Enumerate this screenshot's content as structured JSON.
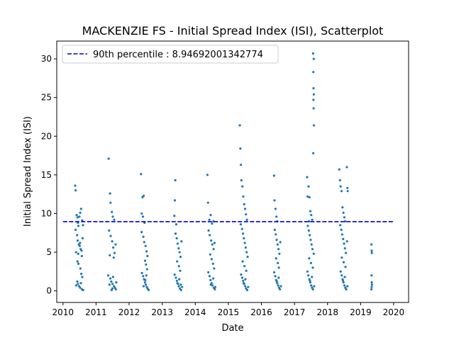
{
  "chart_data": {
    "type": "scatter",
    "title": "MACKENZIE FS - Initial Spread Index (ISI), Scatterplot",
    "xlabel": "Date",
    "ylabel": "Initial Spread Index (ISI)",
    "xlim": [
      "2009-10-24",
      "2020-06-14"
    ],
    "ylim": [
      -1.5,
      32.3
    ],
    "x_ticks": [
      "2010-01-01",
      "2011-01-01",
      "2012-01-01",
      "2013-01-01",
      "2014-01-01",
      "2015-01-01",
      "2016-01-01",
      "2017-01-01",
      "2018-01-01",
      "2019-01-01",
      "2020-01-01"
    ],
    "x_tick_labels": [
      "2010",
      "2011",
      "2012",
      "2013",
      "2014",
      "2015",
      "2016",
      "2017",
      "2018",
      "2019",
      "2020"
    ],
    "y_ticks": [
      0,
      5,
      10,
      15,
      20,
      25,
      30
    ],
    "y_tick_labels": [
      "0",
      "5",
      "10",
      "15",
      "20",
      "25",
      "30"
    ],
    "grid": false,
    "legend": {
      "position": "top-left",
      "entries": [
        "90th percentile : 8.94692001342774"
      ]
    },
    "threshold": {
      "name": "90th percentile : 8.94692001342774",
      "value": 8.94692001342774,
      "x_range": [
        "2010-01-01",
        "2020-01-01"
      ],
      "color": "#0000cc",
      "style": "dashed"
    },
    "series": [
      {
        "color": "#1f77b4",
        "points": [
          [
            "2010-05-15",
            13.6
          ],
          [
            "2010-05-20",
            13.0
          ],
          [
            "2010-06-01",
            9.8
          ],
          [
            "2010-06-10",
            9.5
          ],
          [
            "2010-06-15",
            8.8
          ],
          [
            "2010-06-20",
            8.4
          ],
          [
            "2010-07-01",
            9.6
          ],
          [
            "2010-07-10",
            10.1
          ],
          [
            "2010-07-20",
            10.6
          ],
          [
            "2010-08-01",
            9.1
          ],
          [
            "2010-08-10",
            8.5
          ],
          [
            "2010-05-20",
            7.9
          ],
          [
            "2010-06-05",
            7.2
          ],
          [
            "2010-06-12",
            6.5
          ],
          [
            "2010-06-25",
            6.0
          ],
          [
            "2010-07-05",
            5.8
          ],
          [
            "2010-07-15",
            5.4
          ],
          [
            "2010-07-25",
            5.2
          ],
          [
            "2010-08-05",
            6.8
          ],
          [
            "2010-05-25",
            5.0
          ],
          [
            "2010-06-18",
            4.8
          ],
          [
            "2010-07-08",
            6.2
          ],
          [
            "2010-07-28",
            4.5
          ],
          [
            "2010-06-10",
            3.8
          ],
          [
            "2010-06-20",
            3.5
          ],
          [
            "2010-07-12",
            2.9
          ],
          [
            "2010-07-22",
            2.2
          ],
          [
            "2010-08-02",
            1.8
          ],
          [
            "2010-06-08",
            1.2
          ],
          [
            "2010-06-15",
            0.9
          ],
          [
            "2010-06-28",
            0.6
          ],
          [
            "2010-07-10",
            0.4
          ],
          [
            "2010-07-30",
            0.2
          ],
          [
            "2010-08-12",
            0.1
          ],
          [
            "2010-05-28",
            0.7
          ],
          [
            "2010-07-18",
            1.0
          ],
          [
            "2011-05-20",
            17.1
          ],
          [
            "2011-06-05",
            12.6
          ],
          [
            "2011-06-10",
            11.4
          ],
          [
            "2011-06-25",
            10.2
          ],
          [
            "2011-07-05",
            9.6
          ],
          [
            "2011-07-20",
            9.2
          ],
          [
            "2011-05-25",
            7.8
          ],
          [
            "2011-06-12",
            7.1
          ],
          [
            "2011-06-28",
            6.4
          ],
          [
            "2011-07-10",
            5.6
          ],
          [
            "2011-07-25",
            4.9
          ],
          [
            "2011-08-05",
            6.0
          ],
          [
            "2011-06-02",
            4.6
          ],
          [
            "2011-07-15",
            4.3
          ],
          [
            "2011-05-15",
            2.0
          ],
          [
            "2011-06-08",
            1.6
          ],
          [
            "2011-06-18",
            1.2
          ],
          [
            "2011-07-02",
            0.9
          ],
          [
            "2011-07-18",
            0.6
          ],
          [
            "2011-07-28",
            0.4
          ],
          [
            "2011-08-08",
            0.2
          ],
          [
            "2011-06-22",
            0.1
          ],
          [
            "2011-05-30",
            0.8
          ],
          [
            "2011-07-08",
            1.8
          ],
          [
            "2011-08-12",
            1.1
          ],
          [
            "2011-06-30",
            0.3
          ],
          [
            "2012-05-12",
            15.1
          ],
          [
            "2012-05-28",
            12.1
          ],
          [
            "2012-06-10",
            12.3
          ],
          [
            "2012-05-20",
            10.0
          ],
          [
            "2012-06-02",
            9.6
          ],
          [
            "2012-06-20",
            8.8
          ],
          [
            "2012-05-18",
            7.6
          ],
          [
            "2012-06-06",
            7.0
          ],
          [
            "2012-06-16",
            6.3
          ],
          [
            "2012-07-01",
            5.8
          ],
          [
            "2012-07-12",
            5.1
          ],
          [
            "2012-07-22",
            4.5
          ],
          [
            "2012-06-25",
            3.9
          ],
          [
            "2012-07-06",
            3.4
          ],
          [
            "2012-07-18",
            2.8
          ],
          [
            "2012-05-22",
            2.3
          ],
          [
            "2012-06-04",
            1.9
          ],
          [
            "2012-06-14",
            1.5
          ],
          [
            "2012-06-24",
            1.1
          ],
          [
            "2012-07-04",
            0.8
          ],
          [
            "2012-07-14",
            0.5
          ],
          [
            "2012-07-24",
            0.3
          ],
          [
            "2012-08-04",
            0.1
          ],
          [
            "2012-06-09",
            0.6
          ],
          [
            "2012-06-29",
            1.4
          ],
          [
            "2012-07-09",
            2.0
          ],
          [
            "2013-05-25",
            14.3
          ],
          [
            "2013-05-20",
            11.7
          ],
          [
            "2013-05-15",
            9.7
          ],
          [
            "2013-06-05",
            8.6
          ],
          [
            "2013-05-28",
            7.4
          ],
          [
            "2013-06-10",
            6.8
          ],
          [
            "2013-06-20",
            6.1
          ],
          [
            "2013-07-01",
            5.5
          ],
          [
            "2013-07-12",
            5.0
          ],
          [
            "2013-07-22",
            4.4
          ],
          [
            "2013-06-15",
            3.8
          ],
          [
            "2013-07-05",
            3.2
          ],
          [
            "2013-07-18",
            2.6
          ],
          [
            "2013-08-01",
            6.4
          ],
          [
            "2013-05-18",
            2.1
          ],
          [
            "2013-06-01",
            1.7
          ],
          [
            "2013-06-12",
            1.3
          ],
          [
            "2013-06-24",
            0.9
          ],
          [
            "2013-07-03",
            0.6
          ],
          [
            "2013-07-15",
            0.3
          ],
          [
            "2013-07-28",
            0.1
          ],
          [
            "2013-08-08",
            0.5
          ],
          [
            "2013-06-18",
            1.0
          ],
          [
            "2013-07-08",
            1.5
          ],
          [
            "2013-07-25",
            0.8
          ],
          [
            "2014-05-15",
            15.0
          ],
          [
            "2014-05-22",
            11.4
          ],
          [
            "2014-06-05",
            9.2
          ],
          [
            "2014-06-20",
            9.8
          ],
          [
            "2014-07-05",
            8.7
          ],
          [
            "2014-07-20",
            9.0
          ],
          [
            "2014-05-28",
            7.8
          ],
          [
            "2014-06-10",
            7.2
          ],
          [
            "2014-06-25",
            6.5
          ],
          [
            "2014-07-08",
            6.0
          ],
          [
            "2014-07-22",
            5.4
          ],
          [
            "2014-08-02",
            6.2
          ],
          [
            "2014-06-15",
            4.7
          ],
          [
            "2014-07-01",
            4.1
          ],
          [
            "2014-07-15",
            3.5
          ],
          [
            "2014-07-28",
            2.9
          ],
          [
            "2014-05-25",
            2.4
          ],
          [
            "2014-06-08",
            1.9
          ],
          [
            "2014-06-18",
            1.4
          ],
          [
            "2014-06-30",
            1.0
          ],
          [
            "2014-07-10",
            0.7
          ],
          [
            "2014-07-25",
            0.4
          ],
          [
            "2014-08-05",
            0.2
          ],
          [
            "2014-06-22",
            0.8
          ],
          [
            "2014-07-18",
            1.6
          ],
          [
            "2014-08-10",
            0.5
          ],
          [
            "2015-05-08",
            21.4
          ],
          [
            "2015-05-14",
            18.4
          ],
          [
            "2015-05-20",
            16.3
          ],
          [
            "2015-05-25",
            14.3
          ],
          [
            "2015-06-05",
            13.5
          ],
          [
            "2015-06-15",
            12.2
          ],
          [
            "2015-06-25",
            11.2
          ],
          [
            "2015-07-05",
            10.6
          ],
          [
            "2015-07-15",
            9.9
          ],
          [
            "2015-07-25",
            9.2
          ],
          [
            "2015-05-18",
            8.6
          ],
          [
            "2015-06-02",
            8.0
          ],
          [
            "2015-06-12",
            7.4
          ],
          [
            "2015-06-22",
            6.8
          ],
          [
            "2015-07-02",
            6.2
          ],
          [
            "2015-07-12",
            5.6
          ],
          [
            "2015-07-22",
            5.0
          ],
          [
            "2015-08-02",
            4.4
          ],
          [
            "2015-06-08",
            3.8
          ],
          [
            "2015-06-28",
            3.2
          ],
          [
            "2015-07-18",
            2.6
          ],
          [
            "2015-05-22",
            2.1
          ],
          [
            "2015-06-04",
            1.7
          ],
          [
            "2015-06-14",
            1.3
          ],
          [
            "2015-06-26",
            0.9
          ],
          [
            "2015-07-06",
            0.6
          ],
          [
            "2015-07-16",
            0.3
          ],
          [
            "2015-07-28",
            0.1
          ],
          [
            "2015-08-08",
            0.5
          ],
          [
            "2015-06-18",
            1.0
          ],
          [
            "2015-07-08",
            1.5
          ],
          [
            "2016-05-20",
            14.9
          ],
          [
            "2016-05-25",
            11.7
          ],
          [
            "2016-06-05",
            10.6
          ],
          [
            "2016-06-15",
            9.6
          ],
          [
            "2016-06-25",
            9.0
          ],
          [
            "2016-05-28",
            7.9
          ],
          [
            "2016-06-08",
            7.3
          ],
          [
            "2016-06-18",
            6.6
          ],
          [
            "2016-06-28",
            6.0
          ],
          [
            "2016-07-08",
            5.4
          ],
          [
            "2016-07-18",
            4.8
          ],
          [
            "2016-07-28",
            6.3
          ],
          [
            "2016-06-12",
            4.2
          ],
          [
            "2016-07-01",
            3.6
          ],
          [
            "2016-07-12",
            3.0
          ],
          [
            "2016-05-22",
            2.4
          ],
          [
            "2016-06-02",
            1.9
          ],
          [
            "2016-06-13",
            1.4
          ],
          [
            "2016-06-24",
            1.0
          ],
          [
            "2016-07-04",
            0.7
          ],
          [
            "2016-07-14",
            0.4
          ],
          [
            "2016-07-24",
            0.2
          ],
          [
            "2016-08-04",
            0.6
          ],
          [
            "2016-06-20",
            1.2
          ],
          [
            "2016-07-10",
            1.7
          ],
          [
            "2017-07-25",
            30.7
          ],
          [
            "2017-08-01",
            30.0
          ],
          [
            "2017-07-28",
            28.3
          ],
          [
            "2017-07-30",
            26.2
          ],
          [
            "2017-08-02",
            25.4
          ],
          [
            "2017-07-29",
            24.7
          ],
          [
            "2017-07-31",
            23.6
          ],
          [
            "2017-08-03",
            21.4
          ],
          [
            "2017-07-27",
            17.8
          ],
          [
            "2017-05-20",
            14.7
          ],
          [
            "2017-06-05",
            13.5
          ],
          [
            "2017-05-25",
            12.2
          ],
          [
            "2017-06-15",
            12.1
          ],
          [
            "2017-06-25",
            10.3
          ],
          [
            "2017-07-05",
            9.8
          ],
          [
            "2017-07-15",
            9.2
          ],
          [
            "2017-06-10",
            9.0
          ],
          [
            "2017-05-28",
            8.4
          ],
          [
            "2017-06-08",
            7.8
          ],
          [
            "2017-06-18",
            7.2
          ],
          [
            "2017-06-28",
            6.6
          ],
          [
            "2017-07-08",
            6.0
          ],
          [
            "2017-07-18",
            5.4
          ],
          [
            "2017-08-01",
            4.8
          ],
          [
            "2017-06-12",
            4.2
          ],
          [
            "2017-07-02",
            3.6
          ],
          [
            "2017-07-22",
            3.0
          ],
          [
            "2017-05-24",
            2.5
          ],
          [
            "2017-06-03",
            2.0
          ],
          [
            "2017-06-14",
            1.5
          ],
          [
            "2017-06-24",
            1.1
          ],
          [
            "2017-07-04",
            0.7
          ],
          [
            "2017-07-14",
            0.4
          ],
          [
            "2017-07-24",
            0.2
          ],
          [
            "2017-08-05",
            0.6
          ],
          [
            "2017-06-20",
            1.3
          ],
          [
            "2017-07-12",
            1.8
          ],
          [
            "2018-05-10",
            15.7
          ],
          [
            "2018-05-18",
            14.3
          ],
          [
            "2018-05-25",
            13.5
          ],
          [
            "2018-06-05",
            12.9
          ],
          [
            "2018-08-02",
            16.0
          ],
          [
            "2018-08-08",
            13.3
          ],
          [
            "2018-08-12",
            12.9
          ],
          [
            "2018-06-15",
            10.8
          ],
          [
            "2018-06-25",
            10.1
          ],
          [
            "2018-07-05",
            9.5
          ],
          [
            "2018-07-15",
            9.0
          ],
          [
            "2018-05-22",
            8.5
          ],
          [
            "2018-06-02",
            7.9
          ],
          [
            "2018-06-12",
            7.3
          ],
          [
            "2018-06-22",
            6.7
          ],
          [
            "2018-07-02",
            6.1
          ],
          [
            "2018-07-12",
            5.5
          ],
          [
            "2018-07-22",
            4.9
          ],
          [
            "2018-08-04",
            6.4
          ],
          [
            "2018-06-08",
            4.3
          ],
          [
            "2018-06-28",
            3.7
          ],
          [
            "2018-07-18",
            3.1
          ],
          [
            "2018-05-26",
            2.5
          ],
          [
            "2018-06-06",
            2.0
          ],
          [
            "2018-06-16",
            1.5
          ],
          [
            "2018-06-26",
            1.1
          ],
          [
            "2018-07-06",
            0.7
          ],
          [
            "2018-07-16",
            0.4
          ],
          [
            "2018-07-26",
            0.2
          ],
          [
            "2018-08-08",
            0.6
          ],
          [
            "2018-06-20",
            1.3
          ],
          [
            "2018-07-10",
            1.8
          ],
          [
            "2019-05-01",
            6.0
          ],
          [
            "2019-05-03",
            5.2
          ],
          [
            "2019-05-05",
            4.9
          ],
          [
            "2019-05-02",
            2.0
          ],
          [
            "2019-05-04",
            1.1
          ],
          [
            "2019-05-06",
            0.8
          ],
          [
            "2019-05-03",
            0.5
          ],
          [
            "2019-05-01",
            0.2
          ]
        ]
      }
    ]
  }
}
